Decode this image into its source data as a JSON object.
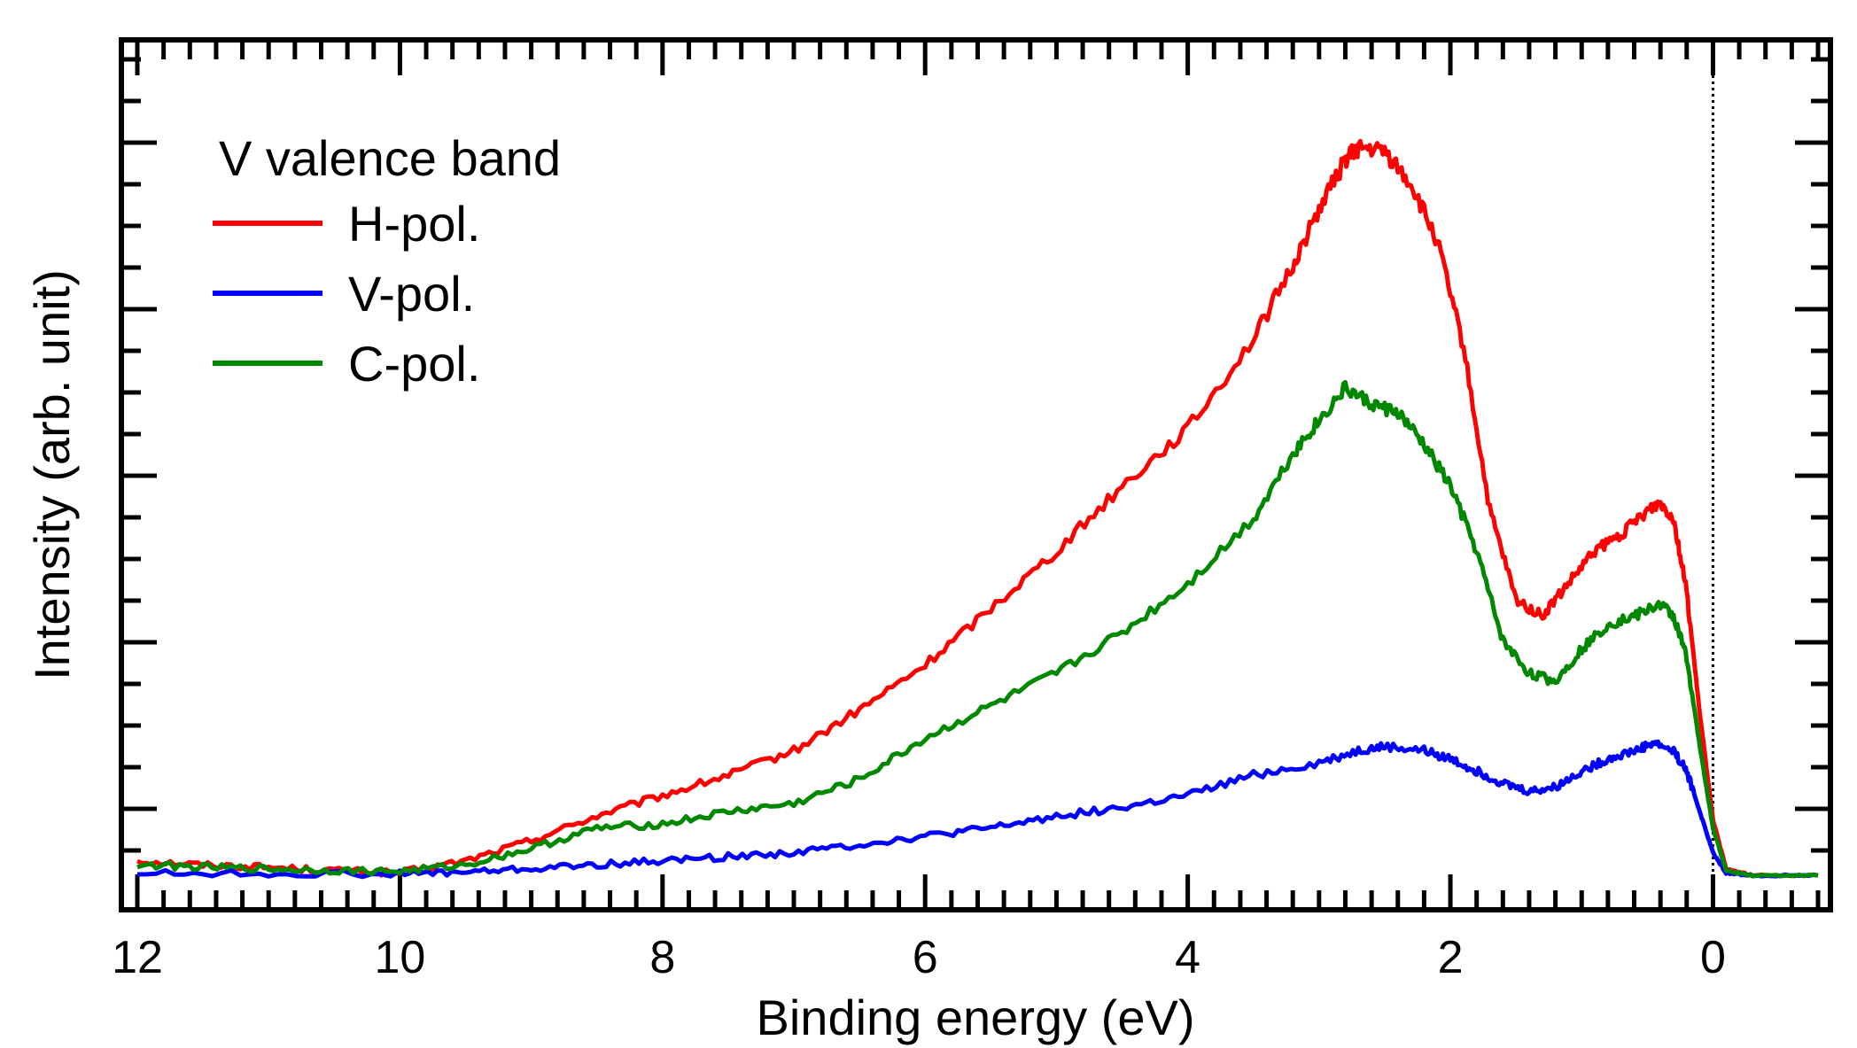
{
  "chart_data": {
    "type": "line",
    "title": "",
    "xlabel": "Binding energy (eV)",
    "ylabel": "Intensity (arb. unit)",
    "x_reversed": true,
    "xlim": [
      12,
      -0.8
    ],
    "ylim": [
      0,
      1.0
    ],
    "x_ticks": [
      12,
      10,
      8,
      6,
      4,
      2,
      0
    ],
    "x_tick_labels": [
      "12",
      "10",
      "8",
      "6",
      "4",
      "2",
      "0"
    ],
    "y_tick_labels_shown": false,
    "fermi_level_line_x": 0,
    "legend": {
      "title": "V valence band",
      "position": "top-left"
    },
    "series": [
      {
        "name": "H-pol.",
        "color": "#ff0000",
        "points": [
          [
            12,
            0.02
          ],
          [
            11.5,
            0.015
          ],
          [
            11,
            0.012
          ],
          [
            10.5,
            0.008
          ],
          [
            10,
            0.005
          ],
          [
            9.5,
            0.02
          ],
          [
            9,
            0.045
          ],
          [
            8.5,
            0.075
          ],
          [
            8,
            0.1
          ],
          [
            7.5,
            0.125
          ],
          [
            7,
            0.155
          ],
          [
            6.5,
            0.205
          ],
          [
            6,
            0.26
          ],
          [
            5.5,
            0.33
          ],
          [
            5,
            0.4
          ],
          [
            4.5,
            0.48
          ],
          [
            4,
            0.55
          ],
          [
            3.5,
            0.66
          ],
          [
            3.2,
            0.75
          ],
          [
            3,
            0.82
          ],
          [
            2.8,
            0.88
          ],
          [
            2.7,
            0.895
          ],
          [
            2.5,
            0.89
          ],
          [
            2.3,
            0.85
          ],
          [
            2.1,
            0.78
          ],
          [
            1.9,
            0.65
          ],
          [
            1.7,
            0.45
          ],
          [
            1.5,
            0.34
          ],
          [
            1.3,
            0.32
          ],
          [
            1.1,
            0.36
          ],
          [
            0.9,
            0.4
          ],
          [
            0.7,
            0.42
          ],
          [
            0.5,
            0.45
          ],
          [
            0.4,
            0.46
          ],
          [
            0.3,
            0.44
          ],
          [
            0.2,
            0.35
          ],
          [
            0.1,
            0.2
          ],
          [
            0,
            0.07
          ],
          [
            -0.1,
            0.01
          ],
          [
            -0.3,
            0.002
          ],
          [
            -0.8,
            0.002
          ]
        ]
      },
      {
        "name": "V-pol.",
        "color": "#0000ff",
        "points": [
          [
            12,
            0.005
          ],
          [
            11,
            0.004
          ],
          [
            10,
            0.004
          ],
          [
            9.5,
            0.006
          ],
          [
            9,
            0.01
          ],
          [
            8.5,
            0.015
          ],
          [
            8,
            0.02
          ],
          [
            7.5,
            0.025
          ],
          [
            7,
            0.03
          ],
          [
            6.5,
            0.04
          ],
          [
            6,
            0.05
          ],
          [
            5.5,
            0.06
          ],
          [
            5,
            0.075
          ],
          [
            4.5,
            0.085
          ],
          [
            4,
            0.1
          ],
          [
            3.5,
            0.125
          ],
          [
            3,
            0.14
          ],
          [
            2.7,
            0.155
          ],
          [
            2.5,
            0.16
          ],
          [
            2.2,
            0.155
          ],
          [
            2,
            0.145
          ],
          [
            1.8,
            0.13
          ],
          [
            1.6,
            0.115
          ],
          [
            1.4,
            0.105
          ],
          [
            1.2,
            0.11
          ],
          [
            1,
            0.13
          ],
          [
            0.8,
            0.145
          ],
          [
            0.6,
            0.155
          ],
          [
            0.45,
            0.165
          ],
          [
            0.3,
            0.155
          ],
          [
            0.2,
            0.13
          ],
          [
            0.1,
            0.08
          ],
          [
            0,
            0.03
          ],
          [
            -0.1,
            0.005
          ],
          [
            -0.3,
            0.002
          ],
          [
            -0.8,
            0.002
          ]
        ]
      },
      {
        "name": "C-pol.",
        "color": "#008800",
        "points": [
          [
            12,
            0.015
          ],
          [
            11.5,
            0.012
          ],
          [
            11,
            0.01
          ],
          [
            10.5,
            0.008
          ],
          [
            10,
            0.007
          ],
          [
            9.5,
            0.015
          ],
          [
            9,
            0.035
          ],
          [
            8.5,
            0.06
          ],
          [
            8,
            0.065
          ],
          [
            7.5,
            0.08
          ],
          [
            7,
            0.09
          ],
          [
            6.5,
            0.12
          ],
          [
            6,
            0.17
          ],
          [
            5.5,
            0.21
          ],
          [
            5,
            0.25
          ],
          [
            4.5,
            0.3
          ],
          [
            4,
            0.36
          ],
          [
            3.5,
            0.44
          ],
          [
            3.2,
            0.52
          ],
          [
            3,
            0.56
          ],
          [
            2.8,
            0.6
          ],
          [
            2.6,
            0.58
          ],
          [
            2.4,
            0.57
          ],
          [
            2.2,
            0.53
          ],
          [
            2,
            0.48
          ],
          [
            1.8,
            0.4
          ],
          [
            1.6,
            0.29
          ],
          [
            1.4,
            0.25
          ],
          [
            1.2,
            0.24
          ],
          [
            1,
            0.28
          ],
          [
            0.8,
            0.31
          ],
          [
            0.6,
            0.32
          ],
          [
            0.4,
            0.335
          ],
          [
            0.3,
            0.32
          ],
          [
            0.2,
            0.27
          ],
          [
            0.1,
            0.16
          ],
          [
            0,
            0.06
          ],
          [
            -0.1,
            0.008
          ],
          [
            -0.3,
            0.002
          ],
          [
            -0.8,
            0.002
          ]
        ]
      }
    ]
  }
}
